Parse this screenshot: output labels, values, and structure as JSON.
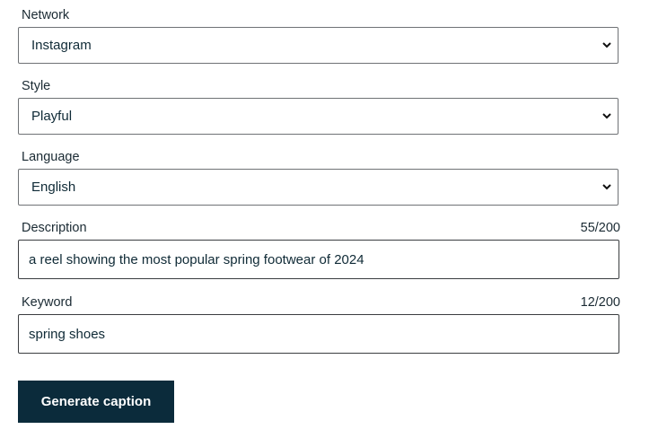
{
  "form": {
    "network": {
      "label": "Network",
      "value": "Instagram"
    },
    "style": {
      "label": "Style",
      "value": "Playful"
    },
    "language": {
      "label": "Language",
      "value": "English"
    },
    "description": {
      "label": "Description",
      "value": "a reel showing the most popular spring footwear of 2024",
      "counter": "55/200"
    },
    "keyword": {
      "label": "Keyword",
      "value": "spring shoes",
      "counter": "12/200"
    },
    "submit_label": "Generate caption"
  },
  "colors": {
    "button_bg": "#0b2b3b",
    "text": "#0f2a36"
  },
  "icons": {
    "select_arrow": "chevron-down-icon"
  }
}
